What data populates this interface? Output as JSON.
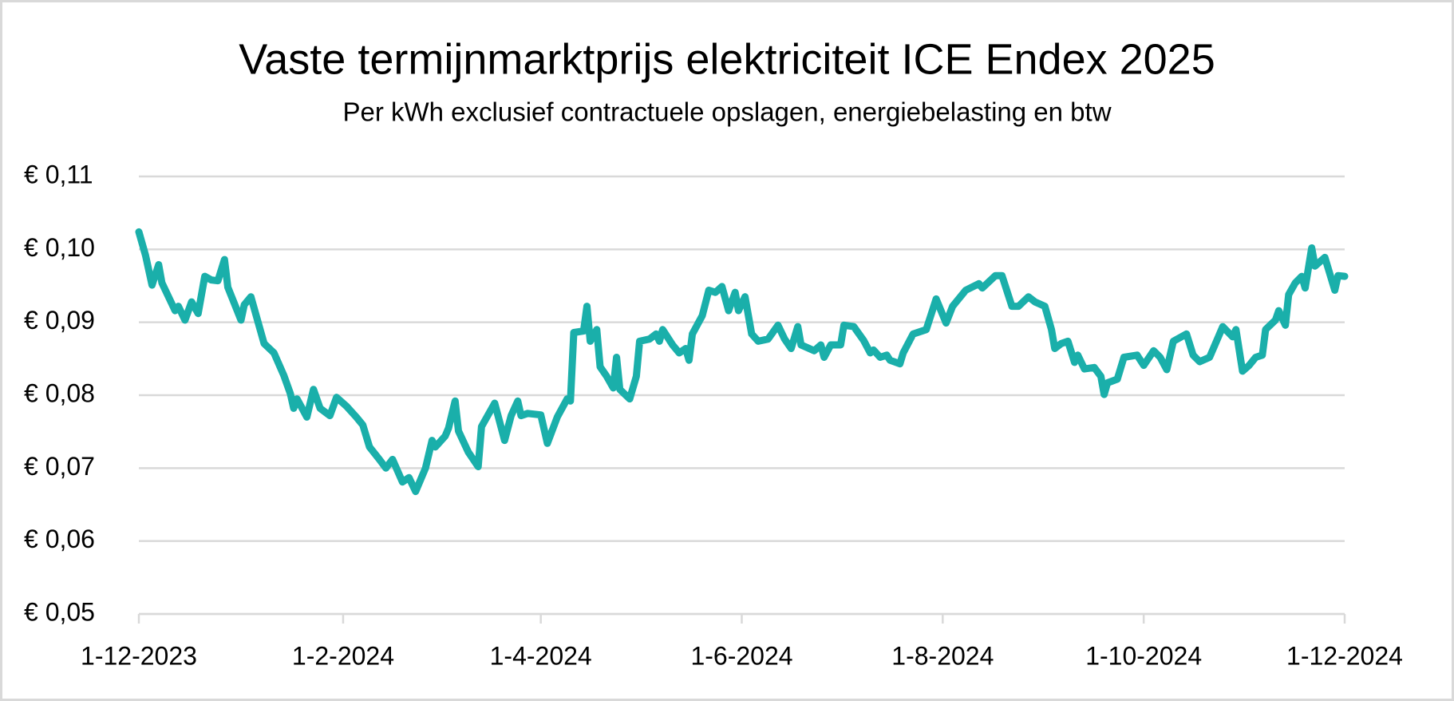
{
  "chart_data": {
    "type": "line",
    "title": "Vaste termijnmarktprijs elektriciteit ICE Endex 2025",
    "subtitle": "Per kWh exclusief contractuele opslagen, energiebelasting en btw",
    "color": "#1aafaa",
    "grid": true,
    "xlim": [
      "1-12-2023",
      "1-12-2024"
    ],
    "xticks": [
      "1-12-2023",
      "1-2-2024",
      "1-4-2024",
      "1-6-2024",
      "1-8-2024",
      "1-10-2024",
      "1-12-2024"
    ],
    "ylim": [
      0.05,
      0.11
    ],
    "yticks": [
      {
        "value": 0.05,
        "label": "€ 0,05"
      },
      {
        "value": 0.06,
        "label": "€ 0,06"
      },
      {
        "value": 0.07,
        "label": "€ 0,07"
      },
      {
        "value": 0.08,
        "label": "€ 0,08"
      },
      {
        "value": 0.09,
        "label": "€ 0,09"
      },
      {
        "value": 0.1,
        "label": "€ 0,10"
      },
      {
        "value": 0.11,
        "label": "€ 0,11"
      }
    ],
    "x": [
      "1-12-2023",
      "3-12-2023",
      "5-12-2023",
      "7-12-2023",
      "8-12-2023",
      "12-12-2023",
      "13-12-2023",
      "15-12-2023",
      "17-12-2023",
      "19-12-2023",
      "21-12-2023",
      "23-12-2023",
      "25-12-2023",
      "27-12-2023",
      "28-12-2023",
      "1-1-2024",
      "2-1-2024",
      "4-1-2024",
      "8-1-2024",
      "11-1-2024",
      "14-1-2024",
      "16-1-2024",
      "17-1-2024",
      "18-1-2024",
      "21-1-2024",
      "23-1-2024",
      "25-1-2024",
      "28-1-2024",
      "30-1-2024",
      "2-2-2024",
      "5-2-2024",
      "7-2-2024",
      "9-2-2024",
      "12-2-2024",
      "14-2-2024",
      "16-2-2024",
      "19-2-2024",
      "21-2-2024",
      "23-2-2024",
      "26-2-2024",
      "28-2-2024",
      "29-2-2024",
      "3-3-2024",
      "4-3-2024",
      "6-3-2024",
      "7-3-2024",
      "10-3-2024",
      "13-3-2024",
      "14-3-2024",
      "18-3-2024",
      "21-3-2024",
      "23-3-2024",
      "25-3-2024",
      "26-3-2024",
      "28-3-2024",
      "1-4-2024",
      "3-4-2024",
      "6-4-2024",
      "9-4-2024",
      "10-4-2024",
      "11-4-2024",
      "14-4-2024",
      "15-4-2024",
      "16-4-2024",
      "18-4-2024",
      "19-4-2024",
      "21-4-2024",
      "23-4-2024",
      "24-4-2024",
      "25-4-2024",
      "28-4-2024",
      "30-4-2024",
      "1-5-2024",
      "4-5-2024",
      "6-5-2024",
      "7-5-2024",
      "8-5-2024",
      "11-5-2024",
      "13-5-2024",
      "15-5-2024",
      "16-5-2024",
      "17-5-2024",
      "20-5-2024",
      "22-5-2024",
      "24-5-2024",
      "26-5-2024",
      "28-5-2024",
      "30-5-2024",
      "31-5-2024",
      "2-6-2024",
      "4-6-2024",
      "6-6-2024",
      "9-6-2024",
      "12-6-2024",
      "14-6-2024",
      "16-6-2024",
      "18-6-2024",
      "19-6-2024",
      "23-6-2024",
      "25-6-2024",
      "26-6-2024",
      "28-6-2024",
      "1-7-2024",
      "2-7-2024",
      "5-7-2024",
      "8-7-2024",
      "10-7-2024",
      "11-7-2024",
      "13-7-2024",
      "15-7-2024",
      "16-7-2024",
      "19-7-2024",
      "20-7-2024",
      "23-7-2024",
      "27-7-2024",
      "30-7-2024",
      "2-8-2024",
      "4-8-2024",
      "8-8-2024",
      "12-8-2024",
      "13-8-2024",
      "17-8-2024",
      "19-8-2024",
      "22-8-2024",
      "24-8-2024",
      "27-8-2024",
      "29-8-2024",
      "1-9-2024",
      "3-9-2024",
      "4-9-2024",
      "6-9-2024",
      "8-9-2024",
      "10-9-2024",
      "11-9-2024",
      "13-9-2024",
      "16-9-2024",
      "18-9-2024",
      "19-9-2024",
      "20-9-2024",
      "23-9-2024",
      "25-9-2024",
      "29-9-2024",
      "1-10-2024",
      "4-10-2024",
      "6-10-2024",
      "8-10-2024",
      "10-10-2024",
      "14-10-2024",
      "16-10-2024",
      "18-10-2024",
      "21-10-2024",
      "25-10-2024",
      "28-10-2024",
      "29-10-2024",
      "31-10-2024",
      "2-11-2024",
      "4-11-2024",
      "6-11-2024",
      "7-11-2024",
      "10-11-2024",
      "11-11-2024",
      "13-11-2024",
      "14-11-2024",
      "16-11-2024",
      "18-11-2024",
      "19-11-2024",
      "21-11-2024",
      "22-11-2024",
      "25-11-2024",
      "28-11-2024",
      "29-11-2024",
      "1-12-2024"
    ],
    "values": [
      0.1024,
      0.0992,
      0.0951,
      0.0979,
      0.0954,
      0.0916,
      0.0922,
      0.0903,
      0.0928,
      0.0912,
      0.0963,
      0.0958,
      0.0957,
      0.0986,
      0.0948,
      0.0903,
      0.0924,
      0.0935,
      0.0871,
      0.0858,
      0.0827,
      0.0802,
      0.0782,
      0.0795,
      0.077,
      0.0808,
      0.0782,
      0.0772,
      0.0797,
      0.0785,
      0.077,
      0.0759,
      0.0729,
      0.0712,
      0.07,
      0.0712,
      0.0681,
      0.0687,
      0.0668,
      0.07,
      0.0738,
      0.0729,
      0.0744,
      0.0755,
      0.0792,
      0.0751,
      0.0722,
      0.0702,
      0.0757,
      0.0789,
      0.0738,
      0.0772,
      0.0792,
      0.0772,
      0.0775,
      0.0773,
      0.0734,
      0.077,
      0.0795,
      0.0792,
      0.0886,
      0.0888,
      0.0922,
      0.0874,
      0.089,
      0.0839,
      0.0826,
      0.081,
      0.0852,
      0.0808,
      0.0795,
      0.0826,
      0.0874,
      0.0877,
      0.0884,
      0.0874,
      0.089,
      0.0869,
      0.0858,
      0.0864,
      0.0848,
      0.0884,
      0.0909,
      0.0944,
      0.0941,
      0.0949,
      0.0916,
      0.0941,
      0.0916,
      0.0935,
      0.0884,
      0.0874,
      0.0877,
      0.0896,
      0.0877,
      0.0864,
      0.0894,
      0.0869,
      0.0861,
      0.0869,
      0.0852,
      0.0869,
      0.0869,
      0.0896,
      0.0894,
      0.0875,
      0.0858,
      0.0862,
      0.0852,
      0.0855,
      0.0848,
      0.0843,
      0.0858,
      0.0884,
      0.089,
      0.0932,
      0.0899,
      0.0922,
      0.0944,
      0.0953,
      0.0947,
      0.0964,
      0.0964,
      0.0922,
      0.0922,
      0.0935,
      0.0928,
      0.0922,
      0.089,
      0.0864,
      0.0871,
      0.0874,
      0.0845,
      0.0855,
      0.0836,
      0.0838,
      0.0826,
      0.0801,
      0.0817,
      0.0822,
      0.0852,
      0.0855,
      0.0841,
      0.0861,
      0.0852,
      0.0835,
      0.0874,
      0.0884,
      0.0855,
      0.0846,
      0.0852,
      0.0894,
      0.088,
      0.089,
      0.0833,
      0.0841,
      0.0852,
      0.0855,
      0.089,
      0.0903,
      0.0916,
      0.0896,
      0.0938,
      0.0954,
      0.0963,
      0.0947,
      0.1002,
      0.0977,
      0.0989,
      0.0944,
      0.0964,
      0.0963
    ]
  }
}
